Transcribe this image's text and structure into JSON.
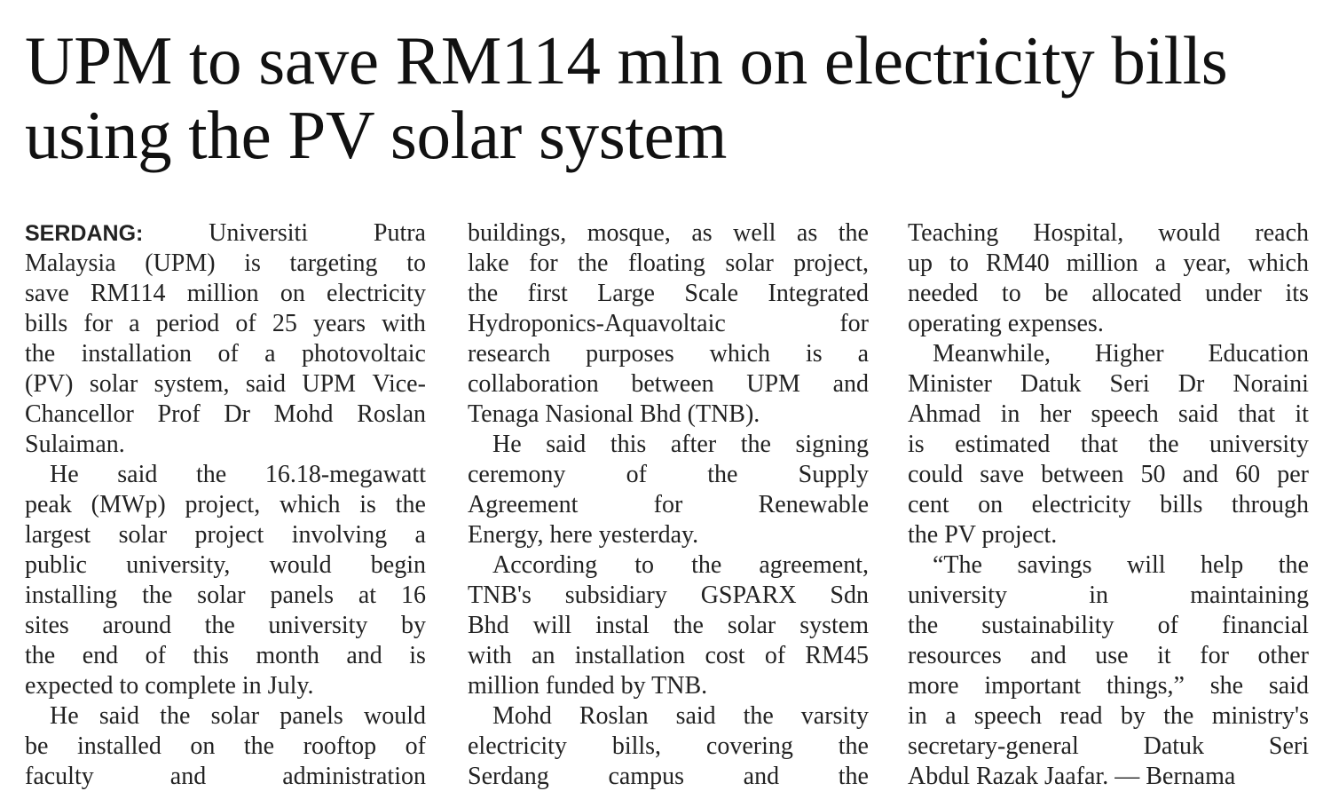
{
  "headline": {
    "line1": "UPM to save RM114 mln on electricity bills",
    "line2": "using the PV solar system"
  },
  "article": {
    "dateline": "SERDANG:",
    "columns": [
      [
        {
          "text": "Universiti Putra",
          "dateline": true
        },
        {
          "text": "Malaysia (UPM) is targeting to"
        },
        {
          "text": "save RM114 million on electricity"
        },
        {
          "text": "bills for a period of 25 years with"
        },
        {
          "text": "the installation of a photovoltaic"
        },
        {
          "text": "(PV) solar system, said UPM Vice-"
        },
        {
          "text": "Chancellor Prof Dr Mohd Roslan"
        },
        {
          "text": "Sulaiman.",
          "last": true
        },
        {
          "text": "He said the 16.18-megawatt",
          "indent": true
        },
        {
          "text": "peak (MWp) project, which is the"
        },
        {
          "text": "largest solar project involving a"
        },
        {
          "text": "public university, would begin"
        },
        {
          "text": "installing the solar panels at 16"
        },
        {
          "text": "sites around the university by"
        },
        {
          "text": "the end of this month and is"
        },
        {
          "text": "expected to complete in July.",
          "last": true
        },
        {
          "text": "He said the solar panels would",
          "indent": true
        },
        {
          "text": "be installed on the rooftop of"
        },
        {
          "text": "faculty and administration"
        }
      ],
      [
        {
          "text": "buildings, mosque, as well as the"
        },
        {
          "text": "lake for the floating solar project,"
        },
        {
          "text": "the first Large Scale Integrated"
        },
        {
          "text": "Hydroponics-Aquavoltaic for"
        },
        {
          "text": "research purposes which is a"
        },
        {
          "text": "collaboration between UPM and"
        },
        {
          "text": "Tenaga Nasional Bhd (TNB).",
          "last": true
        },
        {
          "text": "He said this after the signing",
          "indent": true
        },
        {
          "text": "ceremony of the Supply"
        },
        {
          "text": "Agreement for Renewable"
        },
        {
          "text": "Energy, here yesterday.",
          "last": true
        },
        {
          "text": "According to the agreement,",
          "indent": true
        },
        {
          "text": "TNB's subsidiary GSPARX Sdn"
        },
        {
          "text": "Bhd will instal the solar system"
        },
        {
          "text": "with an installation cost of RM45"
        },
        {
          "text": "million funded by TNB.",
          "last": true
        },
        {
          "text": "Mohd Roslan said the varsity",
          "indent": true
        },
        {
          "text": "electricity bills, covering the"
        },
        {
          "text": "Serdang campus and the"
        }
      ],
      [
        {
          "text": "Teaching Hospital, would reach"
        },
        {
          "text": "up to RM40 million a year, which"
        },
        {
          "text": "needed to be allocated under its"
        },
        {
          "text": "operating expenses.",
          "last": true
        },
        {
          "text": "Meanwhile, Higher Education",
          "indent": true
        },
        {
          "text": "Minister Datuk Seri Dr Noraini"
        },
        {
          "text": "Ahmad in her speech said that it"
        },
        {
          "text": "is estimated that the university"
        },
        {
          "text": "could save between 50 and 60 per"
        },
        {
          "text": "cent on electricity bills through"
        },
        {
          "text": "the PV project.",
          "last": true
        },
        {
          "text": "“The savings will help the",
          "indent": true
        },
        {
          "text": "university in maintaining"
        },
        {
          "text": "the sustainability of financial"
        },
        {
          "text": "resources and use it for other"
        },
        {
          "text": "more important things,” she said"
        },
        {
          "text": "in a speech read by the ministry's"
        },
        {
          "text": "secretary-general Datuk Seri"
        },
        {
          "text": "Abdul Razak Jaafar. — Bernama",
          "last": true
        }
      ]
    ]
  }
}
